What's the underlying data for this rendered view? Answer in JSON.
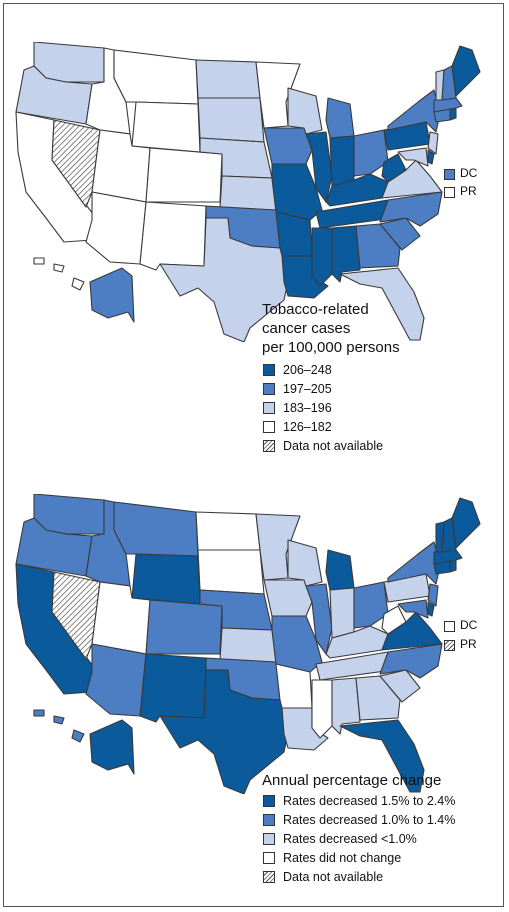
{
  "colors": {
    "level1": "#0a5a9c",
    "level2": "#4d7ec4",
    "level3": "#c4d2ec",
    "level4": "#ffffff",
    "na": "hatch"
  },
  "map1": {
    "legend_title": "Tobacco-related cancer cases per 100,000 persons",
    "legend_title_lines": [
      "Tobacco-related",
      "cancer cases",
      "per 100,000 persons"
    ],
    "legend": [
      {
        "label": "206–248",
        "color": "#0a5a9c"
      },
      {
        "label": "197–205",
        "color": "#4d7ec4"
      },
      {
        "label": "183–196",
        "color": "#c4d2ec"
      },
      {
        "label": "126–182",
        "color": "#ffffff"
      },
      {
        "label": "Data not available",
        "color": "hatch"
      }
    ],
    "extras": [
      {
        "label": "DC",
        "color": "#4d7ec4"
      },
      {
        "label": "PR",
        "color": "#ffffff"
      }
    ]
  },
  "map2": {
    "legend_title": "Annual percentage change",
    "legend": [
      {
        "label": "Rates decreased 1.5% to 2.4%",
        "color": "#0a5a9c"
      },
      {
        "label": "Rates decreased 1.0% to 1.4%",
        "color": "#4d7ec4"
      },
      {
        "label": "Rates decreased <1.0%",
        "color": "#c4d2ec"
      },
      {
        "label": "Rates did not change",
        "color": "#ffffff"
      },
      {
        "label": "Data not available",
        "color": "hatch"
      }
    ],
    "extras": [
      {
        "label": "DC",
        "color": "#ffffff"
      },
      {
        "label": "PR",
        "color": "hatch"
      }
    ]
  }
}
